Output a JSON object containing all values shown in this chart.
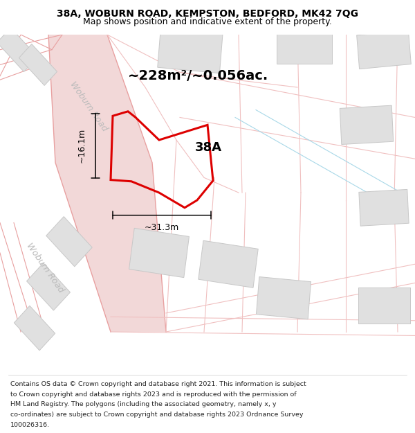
{
  "title_line1": "38A, WOBURN ROAD, KEMPSTON, BEDFORD, MK42 7QG",
  "title_line2": "Map shows position and indicative extent of the property.",
  "area_label": "~228m²/~0.056ac.",
  "label_38A": "38A",
  "dim_width": "~31.3m",
  "dim_height": "~16.1m",
  "road_label_top": "Woburn Road",
  "road_label_bottom": "Woburn Road",
  "footer_lines": [
    "Contains OS data © Crown copyright and database right 2021. This information is subject",
    "to Crown copyright and database rights 2023 and is reproduced with the permission of",
    "HM Land Registry. The polygons (including the associated geometry, namely x, y",
    "co-ordinates) are subject to Crown copyright and database rights 2023 Ordnance Survey",
    "100026316."
  ],
  "road_fill": "#f2d8d8",
  "road_line": "#e8a0a0",
  "road_line_light": "#f0c0c0",
  "plot_color": "#dd0000",
  "building_fill": "#e0e0e0",
  "building_edge": "#c8c8c8",
  "dim_color": "#000000",
  "text_color": "#000000",
  "road_text_color": "#bbbbbb",
  "blue_line": "#a8d8e8",
  "title_fs": 10,
  "subtitle_fs": 9,
  "area_fs": 14,
  "label_fs": 13,
  "dim_fs": 9,
  "road_fs": 9,
  "footer_fs": 6.8
}
